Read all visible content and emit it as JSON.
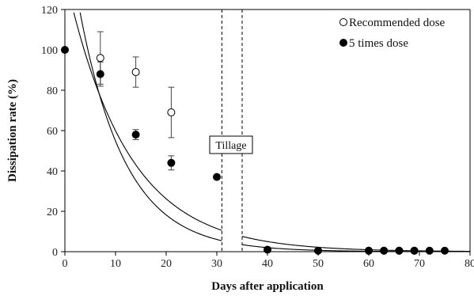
{
  "chart_data": {
    "type": "scatter",
    "xlabel": "Days after application",
    "ylabel": "Dissipation rate (%)",
    "xlim": [
      0,
      80
    ],
    "ylim": [
      0,
      120
    ],
    "xticks": [
      0,
      10,
      20,
      30,
      40,
      50,
      60,
      70,
      80
    ],
    "yticks": [
      0,
      20,
      40,
      60,
      80,
      100,
      120
    ],
    "grid": false,
    "legend_position": "top-right",
    "series": [
      {
        "name": "Recommended dose",
        "marker": "open-circle",
        "color": "#000000",
        "x": [
          7,
          14,
          21,
          60,
          63,
          66,
          69
        ],
        "y": [
          96,
          89,
          69,
          0.5,
          0.5,
          0.5,
          0.5
        ],
        "err": [
          13,
          7.5,
          12.5,
          0,
          0,
          0,
          0
        ]
      },
      {
        "name": "5 times dose",
        "marker": "filled-circle",
        "color": "#000000",
        "x": [
          0,
          7,
          14,
          21,
          30,
          40,
          50,
          60,
          63,
          66,
          69,
          72,
          75
        ],
        "y": [
          100,
          88,
          58,
          44,
          37,
          1,
          0.5,
          0.5,
          0.5,
          0.5,
          0.5,
          0.5,
          0.5
        ],
        "err": [
          0,
          6,
          2.5,
          3.5,
          0,
          0,
          0,
          0,
          0,
          0,
          0,
          0,
          0
        ]
      }
    ],
    "fit_curves": [
      {
        "a": 165,
        "k": 0.1102
      },
      {
        "a": 137,
        "k": 0.0827
      }
    ],
    "annotation": {
      "label": "Tillage",
      "x_start": 31,
      "x_end": 35
    }
  }
}
